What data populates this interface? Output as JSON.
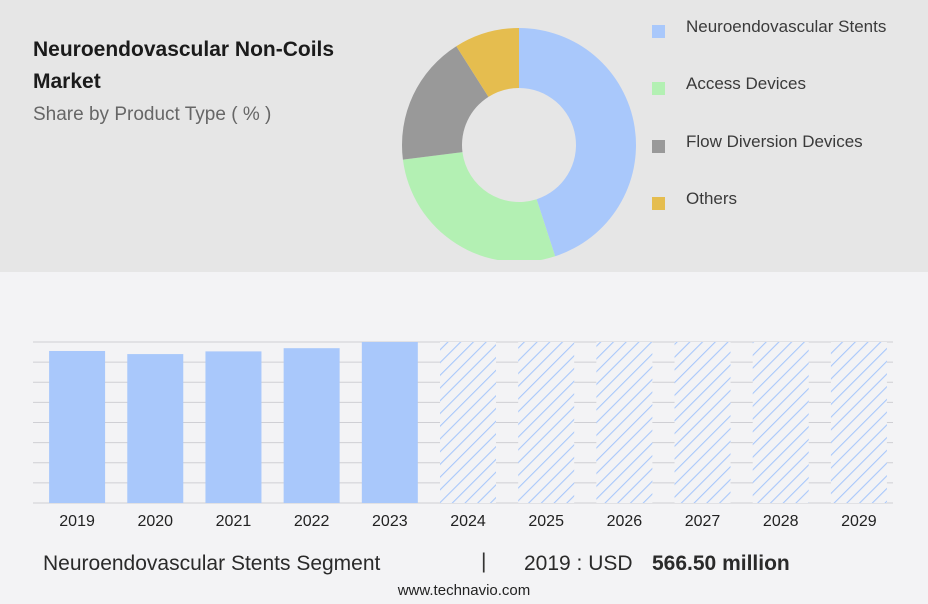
{
  "header": {
    "title": "Neuroendovascular Non-Coils Market",
    "subtitle": "Share by Product Type ( % )"
  },
  "footer": {
    "segment_label": "Neuroendovascular Stents Segment",
    "separator": "|",
    "year_label": "2019 : USD",
    "value_label": "566.50 million"
  },
  "source": "www.technavio.com",
  "chart_data": [
    {
      "type": "pie",
      "subtype": "donut",
      "labels": [
        "Neuroendovascular Stents",
        "Access Devices",
        "Flow Diversion Devices",
        "Others"
      ],
      "values": [
        45,
        28,
        18,
        9
      ],
      "colors": [
        "#a9c8fb",
        "#b3f0b3",
        "#999999",
        "#e5bd4f"
      ],
      "legend_position": "right"
    },
    {
      "type": "bar",
      "categories": [
        "2019",
        "2020",
        "2021",
        "2022",
        "2023",
        "2024",
        "2025",
        "2026",
        "2027",
        "2028",
        "2029"
      ],
      "values": [
        566.5,
        555,
        565,
        577,
        600,
        600,
        600,
        600,
        600,
        600,
        600
      ],
      "forecast": [
        false,
        false,
        false,
        false,
        false,
        true,
        true,
        true,
        true,
        true,
        true
      ],
      "ylim": [
        0,
        600
      ],
      "grid": true,
      "bar_color": "#a9c8fb",
      "forecast_pattern": "diagonal-hatch"
    }
  ]
}
